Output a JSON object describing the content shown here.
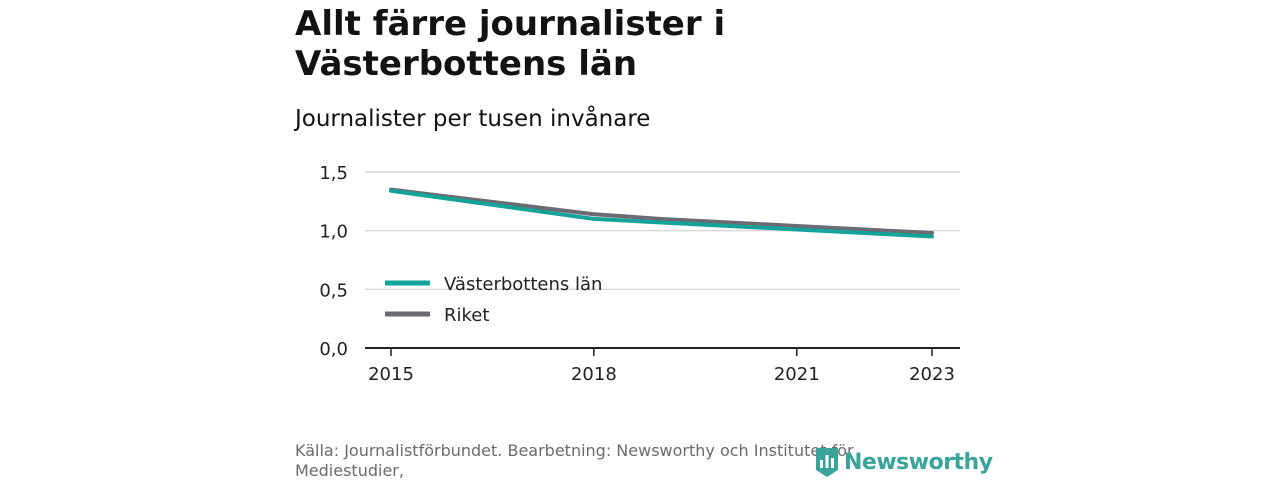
{
  "title": "Allt färre journalister i Västerbottens län",
  "subtitle": "Journalister per tusen invånare",
  "source": "Källa: Journalistförbundet. Bearbetning: Newsworthy och Institutet för Mediestudier,",
  "logo_text": "Newsworthy",
  "colors": {
    "vasterbotten": "#13a39b",
    "riket": "#6c6a73",
    "grid": "#d9d9d9",
    "axis": "#222222"
  },
  "chart_data": {
    "type": "line",
    "x": [
      2015,
      2016,
      2017,
      2018,
      2019,
      2020,
      2021,
      2022,
      2023
    ],
    "xticks": [
      2015,
      2018,
      2021,
      2023
    ],
    "xtick_labels": [
      "2015",
      "2018",
      "2021",
      "2023"
    ],
    "yticks": [
      0,
      0.5,
      1.0,
      1.5
    ],
    "ytick_labels": [
      "0,0",
      "0,5",
      "1,0",
      "1,5"
    ],
    "ylim": [
      0,
      1.5
    ],
    "xlim": [
      2015,
      2023
    ],
    "legend_position": "inside-left",
    "series": [
      {
        "name": "Västerbottens län",
        "color": "#13a39b",
        "values": [
          1.34,
          1.26,
          1.18,
          1.1,
          1.07,
          1.04,
          1.01,
          0.98,
          0.95
        ]
      },
      {
        "name": "Riket",
        "color": "#6c6a73",
        "values": [
          1.35,
          1.28,
          1.21,
          1.14,
          1.1,
          1.07,
          1.04,
          1.01,
          0.98
        ]
      }
    ]
  }
}
